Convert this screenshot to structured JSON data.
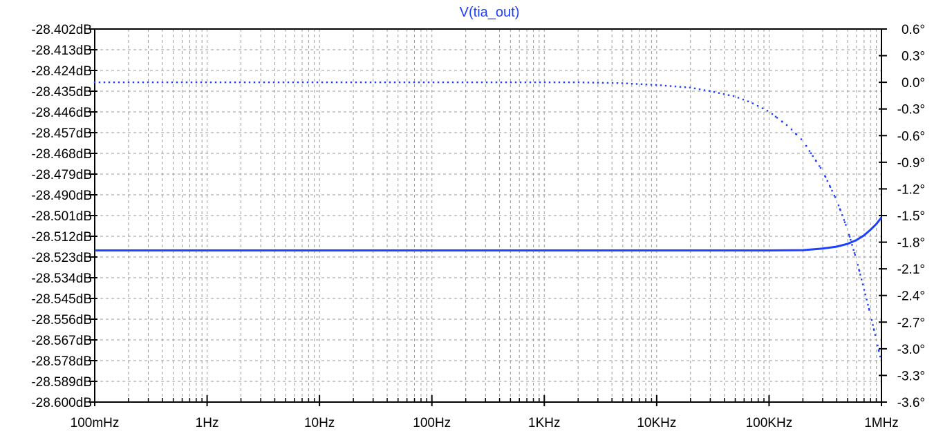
{
  "chart_data": {
    "type": "line",
    "title": "V(tia_out)",
    "x_scale": "log",
    "x_range_hz": [
      0.1,
      1000000
    ],
    "x_ticks": [
      {
        "value": 0.1,
        "label": "100mHz"
      },
      {
        "value": 1,
        "label": "1Hz"
      },
      {
        "value": 10,
        "label": "10Hz"
      },
      {
        "value": 100,
        "label": "100Hz"
      },
      {
        "value": 1000,
        "label": "1KHz"
      },
      {
        "value": 10000,
        "label": "10KHz"
      },
      {
        "value": 100000,
        "label": "100KHz"
      },
      {
        "value": 1000000,
        "label": "1MHz"
      }
    ],
    "y_left": {
      "unit": "dB",
      "range": [
        -28.6,
        -28.402
      ],
      "ticks": [
        {
          "value": -28.402,
          "label": "-28.402dB"
        },
        {
          "value": -28.413,
          "label": "-28.413dB"
        },
        {
          "value": -28.424,
          "label": "-28.424dB"
        },
        {
          "value": -28.435,
          "label": "-28.435dB"
        },
        {
          "value": -28.446,
          "label": "-28.446dB"
        },
        {
          "value": -28.457,
          "label": "-28.457dB"
        },
        {
          "value": -28.468,
          "label": "-28.468dB"
        },
        {
          "value": -28.479,
          "label": "-28.479dB"
        },
        {
          "value": -28.49,
          "label": "-28.490dB"
        },
        {
          "value": -28.501,
          "label": "-28.501dB"
        },
        {
          "value": -28.512,
          "label": "-28.512dB"
        },
        {
          "value": -28.523,
          "label": "-28.523dB"
        },
        {
          "value": -28.534,
          "label": "-28.534dB"
        },
        {
          "value": -28.545,
          "label": "-28.545dB"
        },
        {
          "value": -28.556,
          "label": "-28.556dB"
        },
        {
          "value": -28.567,
          "label": "-28.567dB"
        },
        {
          "value": -28.578,
          "label": "-28.578dB"
        },
        {
          "value": -28.589,
          "label": "-28.589dB"
        },
        {
          "value": -28.6,
          "label": "-28.600dB"
        }
      ]
    },
    "y_right": {
      "unit": "degrees",
      "range": [
        -3.6,
        0.6
      ],
      "ticks": [
        {
          "value": 0.6,
          "label": "0.6°"
        },
        {
          "value": 0.3,
          "label": "0.3°"
        },
        {
          "value": 0.0,
          "label": "0.0°"
        },
        {
          "value": -0.3,
          "label": "-0.3°"
        },
        {
          "value": -0.6,
          "label": "-0.6°"
        },
        {
          "value": -0.9,
          "label": "-0.9°"
        },
        {
          "value": -1.2,
          "label": "-1.2°"
        },
        {
          "value": -1.5,
          "label": "-1.5°"
        },
        {
          "value": -1.8,
          "label": "-1.8°"
        },
        {
          "value": -2.1,
          "label": "-2.1°"
        },
        {
          "value": -2.4,
          "label": "-2.4°"
        },
        {
          "value": -2.7,
          "label": "-2.7°"
        },
        {
          "value": -3.0,
          "label": "-3.0°"
        },
        {
          "value": -3.3,
          "label": "-3.3°"
        },
        {
          "value": -3.6,
          "label": "-3.6°"
        }
      ]
    },
    "grid": true,
    "series": [
      {
        "axis": "left",
        "style": "solid",
        "color": "#1f3fff",
        "points": [
          {
            "x": 0.1,
            "y": -28.5195
          },
          {
            "x": 1,
            "y": -28.5195
          },
          {
            "x": 10,
            "y": -28.5195
          },
          {
            "x": 100,
            "y": -28.5195
          },
          {
            "x": 1000,
            "y": -28.5195
          },
          {
            "x": 10000,
            "y": -28.5195
          },
          {
            "x": 100000,
            "y": -28.5195
          },
          {
            "x": 200000,
            "y": -28.5194
          },
          {
            "x": 300000,
            "y": -28.5185
          },
          {
            "x": 400000,
            "y": -28.5175
          },
          {
            "x": 500000,
            "y": -28.516
          },
          {
            "x": 600000,
            "y": -28.514
          },
          {
            "x": 700000,
            "y": -28.5115
          },
          {
            "x": 800000,
            "y": -28.5085
          },
          {
            "x": 900000,
            "y": -28.5055
          },
          {
            "x": 1000000,
            "y": -28.502
          }
        ]
      },
      {
        "axis": "right",
        "style": "dotted",
        "color": "#1f3fff",
        "points": [
          {
            "x": 0.1,
            "y": 0.0
          },
          {
            "x": 1,
            "y": 0.0
          },
          {
            "x": 10,
            "y": 0.0
          },
          {
            "x": 100,
            "y": 0.0
          },
          {
            "x": 1000,
            "y": 0.0
          },
          {
            "x": 2000,
            "y": 0.0
          },
          {
            "x": 5000,
            "y": -0.01
          },
          {
            "x": 10000,
            "y": -0.03
          },
          {
            "x": 20000,
            "y": -0.06
          },
          {
            "x": 30000,
            "y": -0.1
          },
          {
            "x": 50000,
            "y": -0.16
          },
          {
            "x": 70000,
            "y": -0.23
          },
          {
            "x": 100000,
            "y": -0.33
          },
          {
            "x": 150000,
            "y": -0.5
          },
          {
            "x": 200000,
            "y": -0.66
          },
          {
            "x": 300000,
            "y": -1.0
          },
          {
            "x": 400000,
            "y": -1.33
          },
          {
            "x": 500000,
            "y": -1.66
          },
          {
            "x": 600000,
            "y": -2.0
          },
          {
            "x": 700000,
            "y": -2.33
          },
          {
            "x": 800000,
            "y": -2.62
          },
          {
            "x": 900000,
            "y": -2.9
          },
          {
            "x": 1000000,
            "y": -3.15
          }
        ]
      }
    ]
  }
}
